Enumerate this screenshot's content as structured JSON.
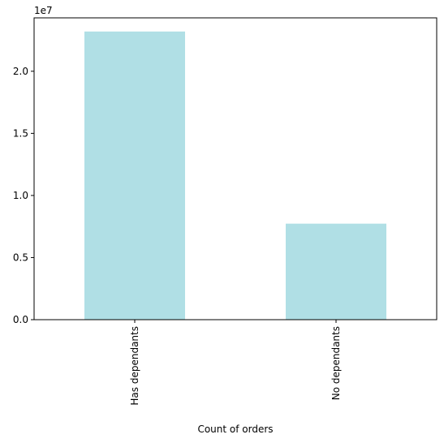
{
  "chart_data": {
    "type": "bar",
    "categories": [
      "Has dependants",
      "No dependants"
    ],
    "values": [
      23200000,
      7730000
    ],
    "title": "",
    "xlabel": "Count of orders",
    "ylabel": "",
    "offset_label": "1e7",
    "ylim": [
      0,
      24300000
    ],
    "yticks": [
      {
        "value": 0,
        "label": "0.0"
      },
      {
        "value": 5000000,
        "label": "0.5"
      },
      {
        "value": 10000000,
        "label": "1.0"
      },
      {
        "value": 15000000,
        "label": "1.5"
      },
      {
        "value": 20000000,
        "label": "2.0"
      }
    ],
    "bar_color": "#b0dfe5",
    "grid": false,
    "legend": "none"
  }
}
